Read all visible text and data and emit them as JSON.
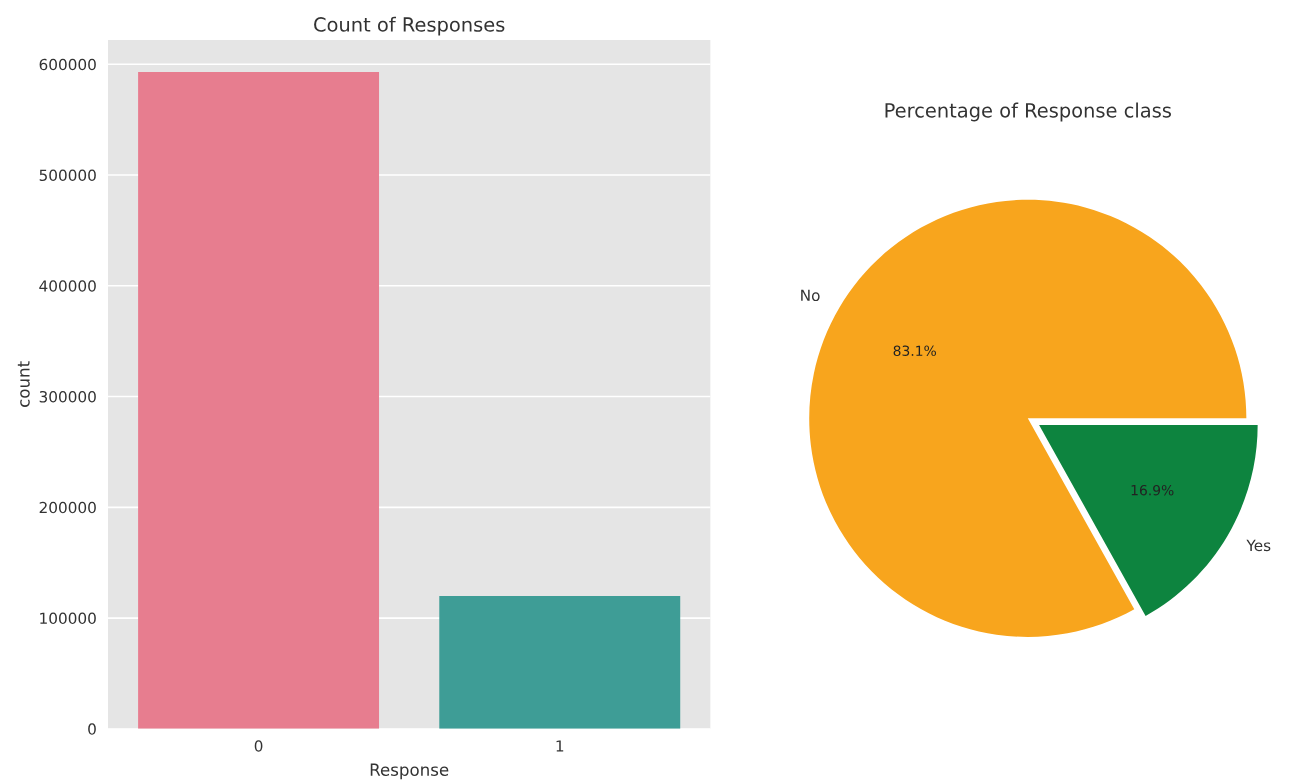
{
  "chart_data": [
    {
      "type": "bar",
      "title": "Count of Responses",
      "xlabel": "Response",
      "ylabel": "count",
      "categories": [
        "0",
        "1"
      ],
      "values": [
        593000,
        120000
      ],
      "colors": [
        "#e77d8f",
        "#3e9d96"
      ],
      "ylim": [
        0,
        622000
      ],
      "yticks": [
        0,
        100000,
        200000,
        300000,
        400000,
        500000,
        600000
      ],
      "grid": "y"
    },
    {
      "type": "pie",
      "title": "Percentage of Response class",
      "categories": [
        "No",
        "Yes"
      ],
      "values": [
        83.1,
        16.9
      ],
      "colors": [
        "#f8a51d",
        "#0d843f"
      ],
      "value_labels": [
        "83.1%",
        "16.9%"
      ]
    }
  ]
}
